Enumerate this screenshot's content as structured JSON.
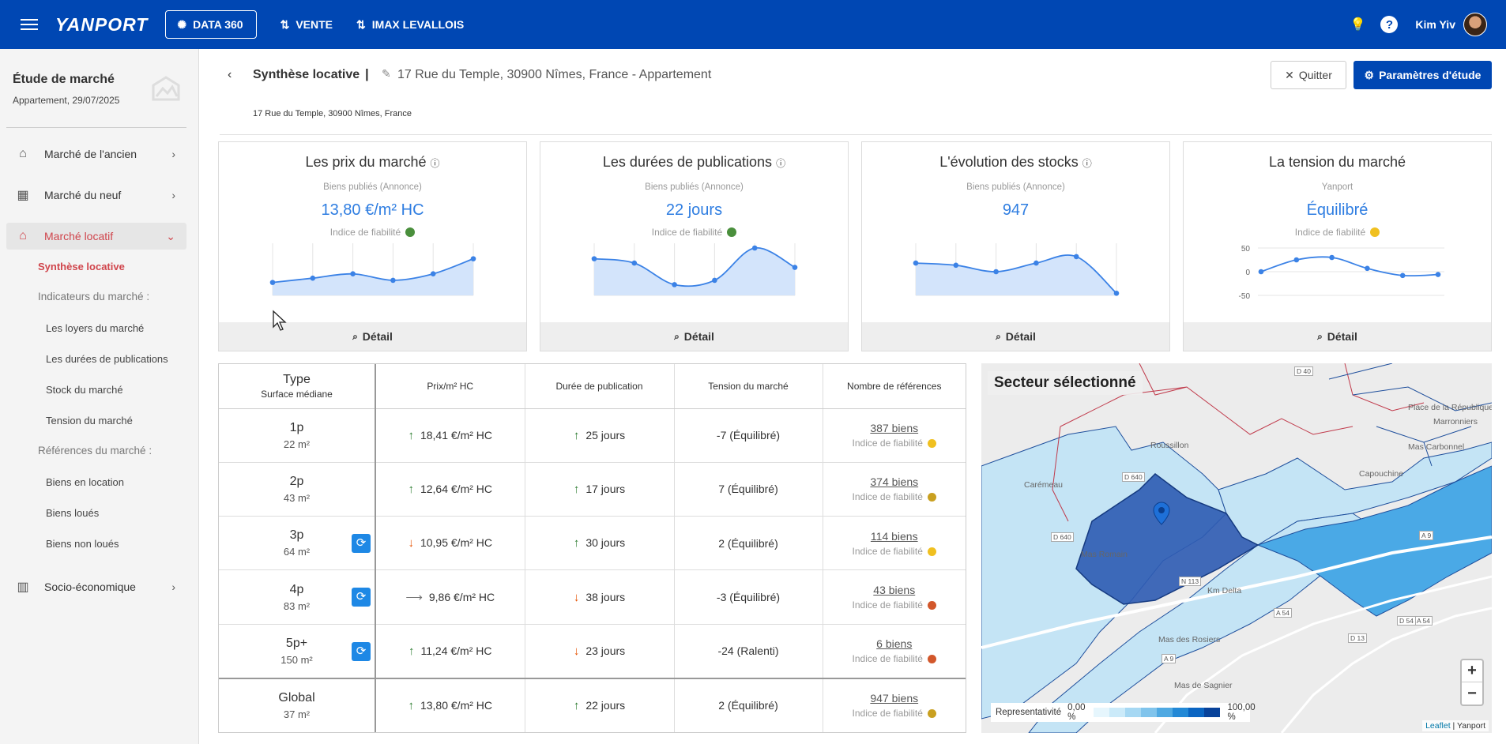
{
  "topbar": {
    "logo": "YANPORT",
    "data360": "DATA 360",
    "nav": [
      "VENTE",
      "IMAX LEVALLOIS"
    ],
    "user": "Kim Yiv"
  },
  "sidebar": {
    "title": "Étude de marché",
    "subtitle": "Appartement, 29/07/2025",
    "items": [
      {
        "label": "Marché de l'ancien"
      },
      {
        "label": "Marché du neuf"
      },
      {
        "label": "Marché locatif"
      },
      {
        "label": "Socio-économique"
      }
    ],
    "sub": {
      "synthese": "Synthèse locative",
      "indicateurs": "Indicateurs du marché :",
      "loyers": "Les loyers du marché",
      "durees": "Les durées de publications",
      "stock": "Stock du marché",
      "tension": "Tension du marché",
      "references": "Références du marché :",
      "location": "Biens en location",
      "loues": "Biens loués",
      "nonloues": "Biens non loués"
    }
  },
  "header": {
    "title": "Synthèse locative",
    "separator": "|",
    "address": "17 Rue du Temple, 30900 Nîmes, France - Appartement",
    "subaddress": "17 Rue du Temple, 30900 Nîmes, France",
    "quit": "Quitter",
    "params": "Paramètres d'étude"
  },
  "cards": [
    {
      "title": "Les prix du marché",
      "source": "Biens publiés (Annonce)",
      "value": "13,80 €/m² HC",
      "reliability": "Indice de fiabilité",
      "dot": "#4a8f3c",
      "detail": "Détail"
    },
    {
      "title": "Les durées de publications",
      "source": "Biens publiés (Annonce)",
      "value": "22 jours",
      "reliability": "Indice de fiabilité",
      "dot": "#4a8f3c",
      "detail": "Détail"
    },
    {
      "title": "L'évolution des stocks",
      "source": "Biens publiés (Annonce)",
      "value": "947",
      "reliability": "",
      "dot": "",
      "detail": "Détail"
    },
    {
      "title": "La tension du marché",
      "source": "Yanport",
      "value": "Équilibré",
      "reliability": "Indice de fiabilité",
      "dot": "#f0c020",
      "detail": "Détail"
    }
  ],
  "chart_data": [
    {
      "type": "area",
      "values": [
        -4,
        -2,
        0,
        -3,
        0,
        7
      ]
    },
    {
      "type": "area",
      "values": [
        7,
        5,
        -5,
        -3,
        12,
        3
      ]
    },
    {
      "type": "area",
      "values": [
        5,
        4,
        1,
        5,
        8,
        -9
      ]
    },
    {
      "type": "line",
      "values": [
        0,
        25,
        30,
        7,
        -8,
        -6
      ],
      "ylim": [
        -50,
        50
      ],
      "yticks": [
        "50",
        "0",
        "-50"
      ]
    }
  ],
  "table": {
    "headers": {
      "type": "Type",
      "surface": "Surface médiane",
      "prix": "Prix/m² HC",
      "duree": "Durée de publication",
      "tension": "Tension du marché",
      "refs": "Nombre de références"
    },
    "reliability": "Indice de fiabilité",
    "rows": [
      {
        "type": "1p",
        "surface": "22 m²",
        "prix": "18,41 €/m² HC",
        "prix_trend": "up",
        "duree": "25 jours",
        "duree_trend": "up",
        "tension": "-7 (Équilibré)",
        "refs": "387 biens",
        "dot": "#f0c020",
        "refresh": false
      },
      {
        "type": "2p",
        "surface": "43 m²",
        "prix": "12,64 €/m² HC",
        "prix_trend": "up",
        "duree": "17 jours",
        "duree_trend": "up",
        "tension": "7 (Équilibré)",
        "refs": "374 biens",
        "dot": "#c9a020",
        "refresh": false
      },
      {
        "type": "3p",
        "surface": "64 m²",
        "prix": "10,95 €/m² HC",
        "prix_trend": "down",
        "duree": "30 jours",
        "duree_trend": "up",
        "tension": "2 (Équilibré)",
        "refs": "114 biens",
        "dot": "#f0c020",
        "refresh": true
      },
      {
        "type": "4p",
        "surface": "83 m²",
        "prix": "9,86 €/m² HC",
        "prix_trend": "flat",
        "duree": "38 jours",
        "duree_trend": "down",
        "tension": "-3 (Équilibré)",
        "refs": "43 biens",
        "dot": "#d2572b",
        "refresh": true
      },
      {
        "type": "5p+",
        "surface": "150 m²",
        "prix": "11,24 €/m² HC",
        "prix_trend": "up",
        "duree": "23 jours",
        "duree_trend": "down",
        "tension": "-24 (Ralenti)",
        "refs": "6 biens",
        "dot": "#d2572b",
        "refresh": true
      }
    ],
    "global": {
      "type": "Global",
      "surface": "37 m²",
      "prix": "13,80 €/m² HC",
      "prix_trend": "up",
      "duree": "22 jours",
      "duree_trend": "up",
      "tension": "2 (Équilibré)",
      "refs": "947 biens",
      "dot": "#c9a020"
    }
  },
  "map": {
    "title": "Secteur sélectionné",
    "legend_label": "Representativité",
    "legend_min": "0,00 %",
    "legend_max": "100,00 %",
    "legend_colors": [
      "#e6f6fd",
      "#cbeaf9",
      "#a6d8f3",
      "#80c4ec",
      "#4fa9e2",
      "#2389d6",
      "#0a65c2",
      "#08429a"
    ],
    "attribution_leaflet": "Leaflet",
    "attribution_rest": "| Yanport",
    "labels": [
      "Carémeau",
      "Roussillon",
      "Mas Romain",
      "Km Delta",
      "Mas des Rosiers",
      "Mas de Sagnier",
      "Mas Carbonnel",
      "Capouchine",
      "Marronniers",
      "Place de la République",
      "D 40",
      "D 640",
      "D 640",
      "N 113",
      "A 54",
      "A 54",
      "D 13",
      "D 54",
      "A 9",
      "A 9"
    ]
  }
}
